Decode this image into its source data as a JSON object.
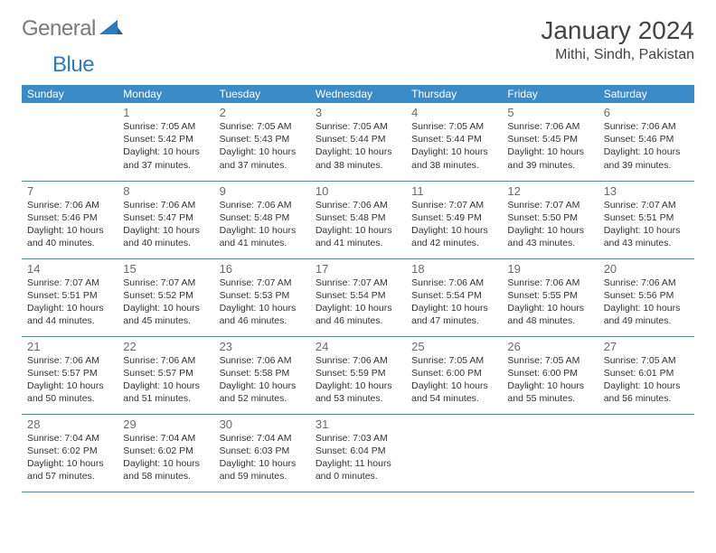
{
  "logo": {
    "text1": "General",
    "text2": "Blue"
  },
  "title": "January 2024",
  "location": "Mithi, Sindh, Pakistan",
  "theme": {
    "header_bg": "#3b8bc9",
    "header_fg": "#ffffff",
    "border_color": "#3b8bc9",
    "logo_gray": "#7a7a7a",
    "logo_blue": "#2e7ac0",
    "title_color": "#444444",
    "text_color": "#333333",
    "daynum_color": "#6a6a6a",
    "title_fontsize": 28,
    "location_fontsize": 16,
    "header_fontsize": 12,
    "daynum_fontsize": 13,
    "info_fontsize": 10.5
  },
  "weekdays": [
    "Sunday",
    "Monday",
    "Tuesday",
    "Wednesday",
    "Thursday",
    "Friday",
    "Saturday"
  ],
  "weeks": [
    [
      null,
      {
        "n": "1",
        "sunrise": "7:05 AM",
        "sunset": "5:42 PM",
        "daylight": "10 hours and 37 minutes."
      },
      {
        "n": "2",
        "sunrise": "7:05 AM",
        "sunset": "5:43 PM",
        "daylight": "10 hours and 37 minutes."
      },
      {
        "n": "3",
        "sunrise": "7:05 AM",
        "sunset": "5:44 PM",
        "daylight": "10 hours and 38 minutes."
      },
      {
        "n": "4",
        "sunrise": "7:05 AM",
        "sunset": "5:44 PM",
        "daylight": "10 hours and 38 minutes."
      },
      {
        "n": "5",
        "sunrise": "7:06 AM",
        "sunset": "5:45 PM",
        "daylight": "10 hours and 39 minutes."
      },
      {
        "n": "6",
        "sunrise": "7:06 AM",
        "sunset": "5:46 PM",
        "daylight": "10 hours and 39 minutes."
      }
    ],
    [
      {
        "n": "7",
        "sunrise": "7:06 AM",
        "sunset": "5:46 PM",
        "daylight": "10 hours and 40 minutes."
      },
      {
        "n": "8",
        "sunrise": "7:06 AM",
        "sunset": "5:47 PM",
        "daylight": "10 hours and 40 minutes."
      },
      {
        "n": "9",
        "sunrise": "7:06 AM",
        "sunset": "5:48 PM",
        "daylight": "10 hours and 41 minutes."
      },
      {
        "n": "10",
        "sunrise": "7:06 AM",
        "sunset": "5:48 PM",
        "daylight": "10 hours and 41 minutes."
      },
      {
        "n": "11",
        "sunrise": "7:07 AM",
        "sunset": "5:49 PM",
        "daylight": "10 hours and 42 minutes."
      },
      {
        "n": "12",
        "sunrise": "7:07 AM",
        "sunset": "5:50 PM",
        "daylight": "10 hours and 43 minutes."
      },
      {
        "n": "13",
        "sunrise": "7:07 AM",
        "sunset": "5:51 PM",
        "daylight": "10 hours and 43 minutes."
      }
    ],
    [
      {
        "n": "14",
        "sunrise": "7:07 AM",
        "sunset": "5:51 PM",
        "daylight": "10 hours and 44 minutes."
      },
      {
        "n": "15",
        "sunrise": "7:07 AM",
        "sunset": "5:52 PM",
        "daylight": "10 hours and 45 minutes."
      },
      {
        "n": "16",
        "sunrise": "7:07 AM",
        "sunset": "5:53 PM",
        "daylight": "10 hours and 46 minutes."
      },
      {
        "n": "17",
        "sunrise": "7:07 AM",
        "sunset": "5:54 PM",
        "daylight": "10 hours and 46 minutes."
      },
      {
        "n": "18",
        "sunrise": "7:06 AM",
        "sunset": "5:54 PM",
        "daylight": "10 hours and 47 minutes."
      },
      {
        "n": "19",
        "sunrise": "7:06 AM",
        "sunset": "5:55 PM",
        "daylight": "10 hours and 48 minutes."
      },
      {
        "n": "20",
        "sunrise": "7:06 AM",
        "sunset": "5:56 PM",
        "daylight": "10 hours and 49 minutes."
      }
    ],
    [
      {
        "n": "21",
        "sunrise": "7:06 AM",
        "sunset": "5:57 PM",
        "daylight": "10 hours and 50 minutes."
      },
      {
        "n": "22",
        "sunrise": "7:06 AM",
        "sunset": "5:57 PM",
        "daylight": "10 hours and 51 minutes."
      },
      {
        "n": "23",
        "sunrise": "7:06 AM",
        "sunset": "5:58 PM",
        "daylight": "10 hours and 52 minutes."
      },
      {
        "n": "24",
        "sunrise": "7:06 AM",
        "sunset": "5:59 PM",
        "daylight": "10 hours and 53 minutes."
      },
      {
        "n": "25",
        "sunrise": "7:05 AM",
        "sunset": "6:00 PM",
        "daylight": "10 hours and 54 minutes."
      },
      {
        "n": "26",
        "sunrise": "7:05 AM",
        "sunset": "6:00 PM",
        "daylight": "10 hours and 55 minutes."
      },
      {
        "n": "27",
        "sunrise": "7:05 AM",
        "sunset": "6:01 PM",
        "daylight": "10 hours and 56 minutes."
      }
    ],
    [
      {
        "n": "28",
        "sunrise": "7:04 AM",
        "sunset": "6:02 PM",
        "daylight": "10 hours and 57 minutes."
      },
      {
        "n": "29",
        "sunrise": "7:04 AM",
        "sunset": "6:02 PM",
        "daylight": "10 hours and 58 minutes."
      },
      {
        "n": "30",
        "sunrise": "7:04 AM",
        "sunset": "6:03 PM",
        "daylight": "10 hours and 59 minutes."
      },
      {
        "n": "31",
        "sunrise": "7:03 AM",
        "sunset": "6:04 PM",
        "daylight": "11 hours and 0 minutes."
      },
      null,
      null,
      null
    ]
  ],
  "labels": {
    "sunrise": "Sunrise:",
    "sunset": "Sunset:",
    "daylight": "Daylight:"
  }
}
